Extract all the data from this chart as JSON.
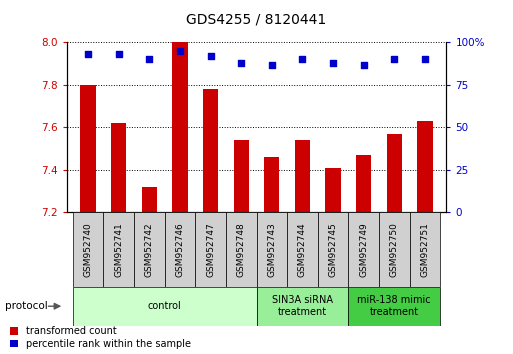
{
  "title": "GDS4255 / 8120441",
  "categories": [
    "GSM952740",
    "GSM952741",
    "GSM952742",
    "GSM952746",
    "GSM952747",
    "GSM952748",
    "GSM952743",
    "GSM952744",
    "GSM952745",
    "GSM952749",
    "GSM952750",
    "GSM952751"
  ],
  "bar_values": [
    7.8,
    7.62,
    7.32,
    8.0,
    7.78,
    7.54,
    7.46,
    7.54,
    7.41,
    7.47,
    7.57,
    7.63
  ],
  "percentile_values": [
    93,
    93,
    90,
    95,
    92,
    88,
    87,
    90,
    88,
    87,
    90,
    90
  ],
  "bar_color": "#cc0000",
  "dot_color": "#0000cc",
  "ylim_left": [
    7.2,
    8.0
  ],
  "ylim_right": [
    0,
    100
  ],
  "yticks_left": [
    7.2,
    7.4,
    7.6,
    7.8,
    8.0
  ],
  "yticks_right": [
    0,
    25,
    50,
    75,
    100
  ],
  "groups": [
    {
      "label": "control",
      "start": 0,
      "end": 5,
      "color": "#ccffcc"
    },
    {
      "label": "SIN3A siRNA\ntreatment",
      "start": 6,
      "end": 8,
      "color": "#99ee99"
    },
    {
      "label": "miR-138 mimic\ntreatment",
      "start": 9,
      "end": 11,
      "color": "#44cc44"
    }
  ],
  "xtick_bg_color": "#d0d0d0",
  "legend_items": [
    {
      "label": "transformed count",
      "color": "#cc0000"
    },
    {
      "label": "percentile rank within the sample",
      "color": "#0000cc"
    }
  ],
  "protocol_label": "protocol",
  "xlabel_color": "#cc0000",
  "right_axis_color": "#0000cc",
  "grid_color": "#000000",
  "background_color": "#ffffff",
  "bar_bottom": 7.2
}
